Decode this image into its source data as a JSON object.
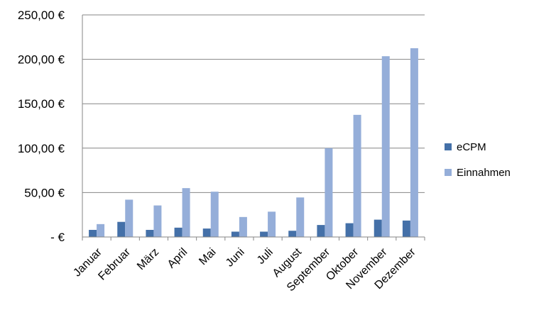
{
  "chart_data": {
    "type": "bar",
    "title": "",
    "xlabel": "",
    "ylabel": "",
    "categories": [
      "Januar",
      "Februar",
      "März",
      "April",
      "Mai",
      "Juni",
      "Juli",
      "August",
      "September",
      "Oktober",
      "November",
      "Dezember"
    ],
    "series": [
      {
        "name": "eCPM",
        "color": "#4470a8",
        "values": [
          8,
          17,
          8,
          10.5,
          9.5,
          6,
          6,
          7,
          13.5,
          15.5,
          19.5,
          18.5
        ]
      },
      {
        "name": "Einnahmen",
        "color": "#95aed9",
        "values": [
          14.5,
          42,
          35.5,
          55,
          51,
          22.5,
          28.5,
          44.5,
          100,
          137.5,
          203.5,
          212.5
        ]
      }
    ],
    "ylim": [
      0,
      250
    ],
    "yticks": [
      0,
      50,
      100,
      150,
      200,
      250
    ],
    "ytick_labels": [
      "-   €",
      "50,00 €",
      "100,00 €",
      "150,00 €",
      "200,00 €",
      "250,00 €"
    ],
    "grid": true,
    "legend_position": "right"
  }
}
